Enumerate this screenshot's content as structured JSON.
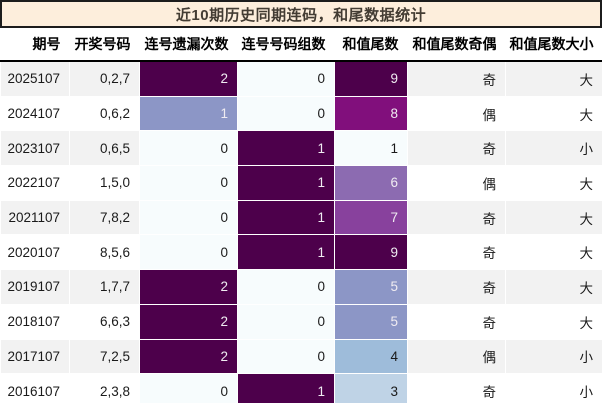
{
  "title": "近10期历史同期连码，和尾数据统计",
  "colors": {
    "title_bg": "#fdeedc",
    "title_border": "#1c1c1c",
    "title_text": "#433c33",
    "stripe_odd": "#f2f2f2",
    "stripe_even": "#ffffff",
    "header_underline": "#000000",
    "heat_text_light": "#f0ecf2",
    "heat_text_dark": "#1a1a1a"
  },
  "table": {
    "columns": [
      {
        "key": "period",
        "label": "期号",
        "type": "plain"
      },
      {
        "key": "numbers",
        "label": "开奖号码",
        "type": "plain"
      },
      {
        "key": "miss",
        "label": "连号遗漏次数",
        "type": "heat",
        "map": "miss"
      },
      {
        "key": "groups",
        "label": "连号号码组数",
        "type": "heat",
        "map": "groups"
      },
      {
        "key": "tail",
        "label": "和值尾数",
        "type": "heat",
        "map": "tail"
      },
      {
        "key": "parity",
        "label": "和值尾数奇偶",
        "type": "plain"
      },
      {
        "key": "size",
        "label": "和值尾数大小",
        "type": "plain"
      }
    ],
    "heatmaps": {
      "miss": {
        "0": {
          "bg": "#f7fcfd",
          "fg": "#1a1a1a"
        },
        "1": {
          "bg": "#8c96c6",
          "fg": "#f0ecf2"
        },
        "2": {
          "bg": "#4d004b",
          "fg": "#f0ecf2"
        }
      },
      "groups": {
        "0": {
          "bg": "#f7fcfd",
          "fg": "#1a1a1a"
        },
        "1": {
          "bg": "#4d004b",
          "fg": "#f0ecf2"
        }
      },
      "tail": {
        "1": {
          "bg": "#f7fcfd",
          "fg": "#1a1a1a"
        },
        "3": {
          "bg": "#bfd3e6",
          "fg": "#1a1a1a"
        },
        "4": {
          "bg": "#9ebcda",
          "fg": "#1a1a1a"
        },
        "5": {
          "bg": "#8c96c6",
          "fg": "#f0ecf2"
        },
        "6": {
          "bg": "#8c6bb1",
          "fg": "#f0ecf2"
        },
        "7": {
          "bg": "#88419d",
          "fg": "#f0ecf2"
        },
        "8": {
          "bg": "#810f7c",
          "fg": "#f0ecf2"
        },
        "9": {
          "bg": "#4d004b",
          "fg": "#f0ecf2"
        }
      }
    },
    "rows": [
      {
        "period": "2025107",
        "numbers": "0,2,7",
        "miss": "2",
        "groups": "0",
        "tail": "9",
        "parity": "奇",
        "size": "大"
      },
      {
        "period": "2024107",
        "numbers": "0,6,2",
        "miss": "1",
        "groups": "0",
        "tail": "8",
        "parity": "偶",
        "size": "大"
      },
      {
        "period": "2023107",
        "numbers": "0,6,5",
        "miss": "0",
        "groups": "1",
        "tail": "1",
        "parity": "奇",
        "size": "小"
      },
      {
        "period": "2022107",
        "numbers": "1,5,0",
        "miss": "0",
        "groups": "1",
        "tail": "6",
        "parity": "偶",
        "size": "大"
      },
      {
        "period": "2021107",
        "numbers": "7,8,2",
        "miss": "0",
        "groups": "1",
        "tail": "7",
        "parity": "奇",
        "size": "大"
      },
      {
        "period": "2020107",
        "numbers": "8,5,6",
        "miss": "0",
        "groups": "1",
        "tail": "9",
        "parity": "奇",
        "size": "大"
      },
      {
        "period": "2019107",
        "numbers": "1,7,7",
        "miss": "2",
        "groups": "0",
        "tail": "5",
        "parity": "奇",
        "size": "大"
      },
      {
        "period": "2018107",
        "numbers": "6,6,3",
        "miss": "2",
        "groups": "0",
        "tail": "5",
        "parity": "奇",
        "size": "大"
      },
      {
        "period": "2017107",
        "numbers": "7,2,5",
        "miss": "2",
        "groups": "0",
        "tail": "4",
        "parity": "偶",
        "size": "小"
      },
      {
        "period": "2016107",
        "numbers": "2,3,8",
        "miss": "0",
        "groups": "1",
        "tail": "3",
        "parity": "奇",
        "size": "小"
      }
    ]
  }
}
